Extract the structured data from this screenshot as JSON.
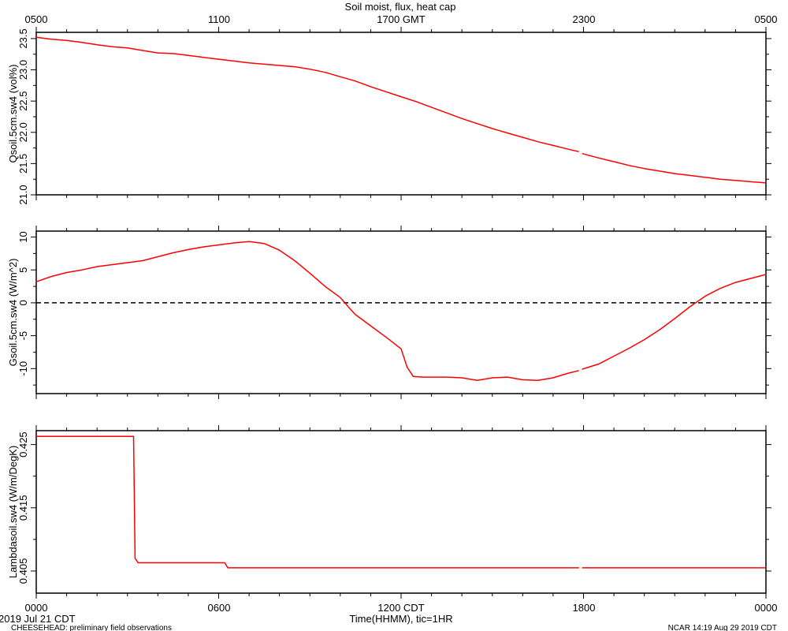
{
  "header": {
    "title": "Soil moist, flux, heat cap",
    "top_ticks": [
      "0500",
      "1100",
      "1700 GMT",
      "2300",
      "0500"
    ]
  },
  "footer": {
    "bottom_ticks": [
      "0000",
      "0600",
      "1200 CDT",
      "1800",
      "0000"
    ],
    "xlabel": "Time(HHMM), tic=1HR",
    "date_label": "2019 Jul 21 CDT",
    "project_label": "CHEESEHEAD: preliminary field observations",
    "credit_label": "NCAR 14:19 Aug 29 2019 CDT"
  },
  "colors": {
    "series": "#ff0000",
    "axis": "#000000",
    "zero_line": "#000000"
  },
  "chart_data": [
    {
      "type": "line",
      "ylabel": "Qsoil.5cm.sw4 (vol%)",
      "xlim": [
        0,
        24
      ],
      "ylim": [
        21.0,
        23.6
      ],
      "y_ticks": [
        21.0,
        21.5,
        22.0,
        22.5,
        23.0,
        23.5
      ],
      "y_tick_labels": [
        "21.0",
        "21.5",
        "22.0",
        "22.5",
        "23.0",
        "23.5"
      ],
      "zero_line": false,
      "series": [
        {
          "x": [
            0,
            0.5,
            1,
            1.5,
            2,
            2.5,
            3,
            3.5,
            4,
            4.5,
            5,
            5.5,
            6,
            6.5,
            7,
            7.5,
            8,
            8.5,
            9,
            9.5,
            10,
            10.5,
            11,
            11.5,
            12,
            12.5,
            13,
            13.5,
            14,
            14.5,
            15,
            15.5,
            16,
            16.5,
            17,
            17.5,
            17.85,
            null,
            17.95,
            18.5,
            19,
            19.5,
            20,
            20.5,
            21,
            21.5,
            22,
            22.5,
            23,
            23.5,
            24
          ],
          "y": [
            23.52,
            23.49,
            23.47,
            23.44,
            23.4,
            23.37,
            23.35,
            23.31,
            23.27,
            23.26,
            23.23,
            23.2,
            23.17,
            23.14,
            23.11,
            23.09,
            23.07,
            23.05,
            23.01,
            22.96,
            22.89,
            22.82,
            22.73,
            22.65,
            22.57,
            22.49,
            22.4,
            22.31,
            22.22,
            22.14,
            22.06,
            21.99,
            21.92,
            21.85,
            21.79,
            21.73,
            21.69,
            null,
            21.66,
            21.59,
            21.53,
            21.47,
            21.42,
            21.38,
            21.34,
            21.31,
            21.28,
            21.25,
            21.23,
            21.21,
            21.19
          ]
        }
      ]
    },
    {
      "type": "line",
      "ylabel": "Gsoil.5cm.sw4 (W/m^2)",
      "xlim": [
        0,
        24
      ],
      "ylim": [
        -13.8,
        10.9
      ],
      "y_ticks": [
        -10,
        -5,
        0,
        5,
        10
      ],
      "y_tick_labels": [
        "-10",
        "-5",
        "0",
        "5",
        "10"
      ],
      "zero_line": true,
      "series": [
        {
          "x": [
            0,
            0.5,
            1,
            1.5,
            2,
            2.5,
            3,
            3.5,
            4,
            4.5,
            5,
            5.5,
            6,
            6.5,
            7,
            7.5,
            8,
            8.5,
            9,
            9.5,
            10,
            10.3,
            10.5,
            11,
            11.5,
            12,
            12.2,
            12.4,
            12.7,
            13,
            13.5,
            14,
            14.5,
            15,
            15.5,
            16,
            16.5,
            17,
            17.5,
            17.85,
            null,
            17.95,
            18.5,
            19,
            19.5,
            20,
            20.5,
            21,
            21.5,
            22,
            22.5,
            23,
            23.5,
            24
          ],
          "y": [
            3.2,
            4.0,
            4.6,
            5.0,
            5.5,
            5.8,
            6.1,
            6.4,
            7.0,
            7.6,
            8.1,
            8.5,
            8.8,
            9.1,
            9.3,
            9.0,
            8.0,
            6.4,
            4.5,
            2.5,
            0.8,
            -0.8,
            -1.8,
            -3.5,
            -5.2,
            -7.0,
            -9.8,
            -11.2,
            -11.3,
            -11.3,
            -11.3,
            -11.4,
            -11.8,
            -11.4,
            -11.3,
            -11.7,
            -11.8,
            -11.4,
            -10.7,
            -10.3,
            null,
            -10.1,
            -9.3,
            -8.1,
            -6.9,
            -5.6,
            -4.1,
            -2.4,
            -0.6,
            1.0,
            2.2,
            3.1,
            3.7,
            4.3
          ]
        }
      ]
    },
    {
      "type": "line",
      "ylabel": "Lambdasoil.sw4 (W/m/DegK)",
      "xlim": [
        0,
        24
      ],
      "ylim": [
        0.4015,
        0.4272
      ],
      "y_ticks": [
        0.405,
        0.415,
        0.425
      ],
      "y_tick_labels": [
        "0.405",
        "0.415",
        "0.425"
      ],
      "zero_line": false,
      "series": [
        {
          "x": [
            0,
            3.2,
            3.25,
            3.35,
            6.2,
            6.3,
            17.85,
            null,
            17.95,
            24
          ],
          "y": [
            0.4263,
            0.4263,
            0.407,
            0.4063,
            0.4063,
            0.4055,
            0.4055,
            null,
            0.4055,
            0.4055
          ]
        }
      ]
    }
  ]
}
